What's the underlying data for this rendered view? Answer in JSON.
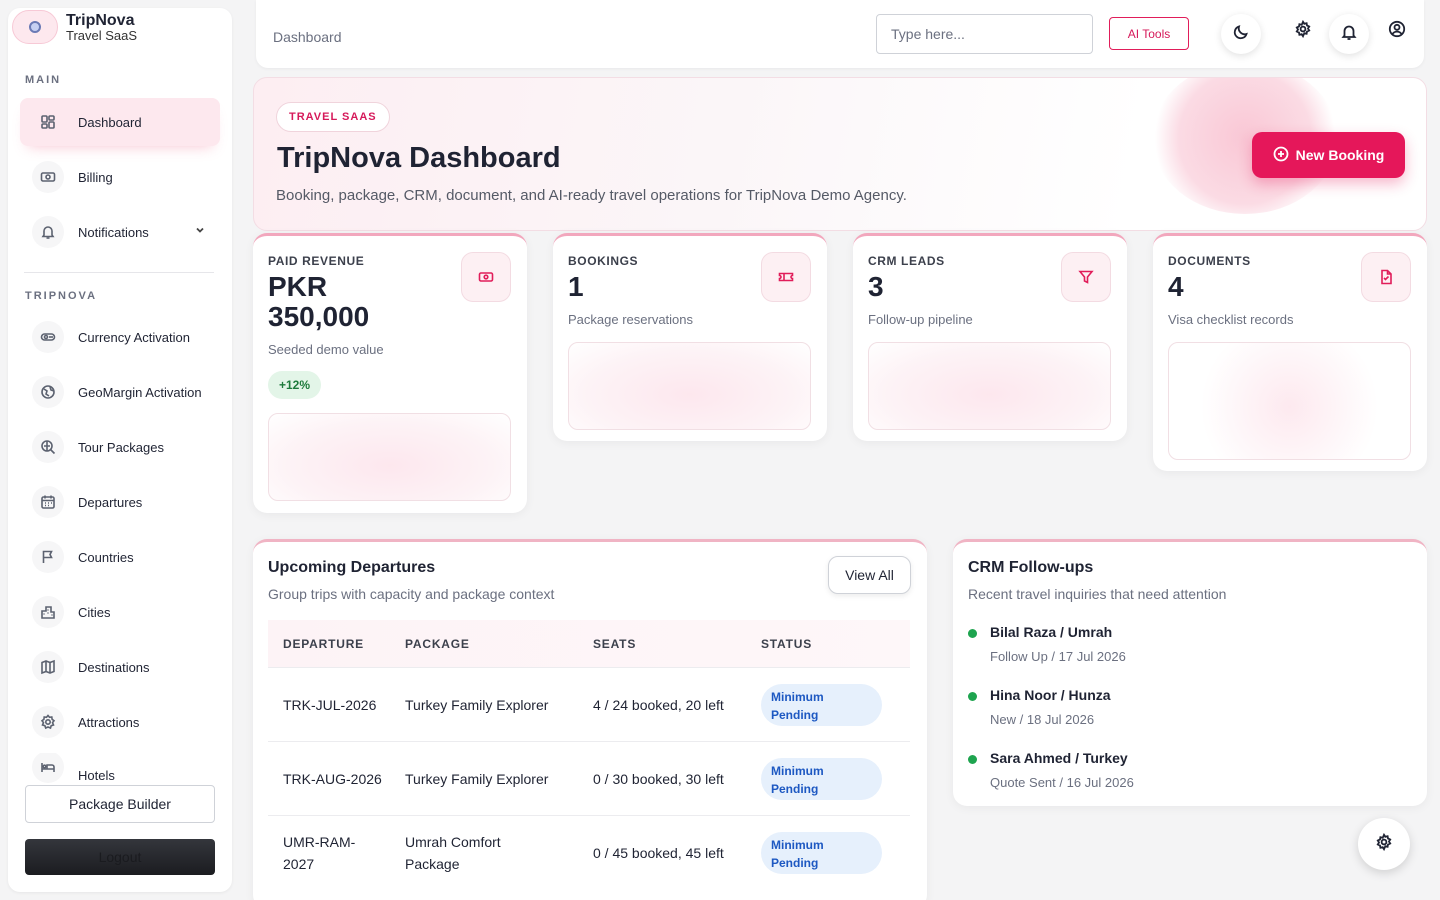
{
  "brand": {
    "name": "TripNova",
    "subtitle": "Travel SaaS"
  },
  "sidebar": {
    "section_main": "MAIN",
    "main_items": [
      {
        "label": "Dashboard",
        "icon": "grid-icon",
        "active": true
      },
      {
        "label": "Billing",
        "icon": "banknote-icon"
      },
      {
        "label": "Notifications",
        "icon": "bell-icon",
        "has_submenu": true
      }
    ],
    "section_tripnova": "TRIPNOVA",
    "tripnova_items": [
      {
        "label": "Currency Activation",
        "icon": "currency-icon"
      },
      {
        "label": "GeoMargin Activation",
        "icon": "globe-icon"
      },
      {
        "label": "Tour Packages",
        "icon": "search-globe-icon"
      },
      {
        "label": "Departures",
        "icon": "calendar-icon"
      },
      {
        "label": "Countries",
        "icon": "flag-icon"
      },
      {
        "label": "Cities",
        "icon": "buildings-icon"
      },
      {
        "label": "Destinations",
        "icon": "map-icon"
      },
      {
        "label": "Attractions",
        "icon": "gear-badge-icon"
      },
      {
        "label": "Hotels",
        "icon": "bed-icon"
      }
    ],
    "package_builder": "Package Builder",
    "logout": "Logout"
  },
  "header": {
    "breadcrumb": "Dashboard",
    "search_placeholder": "Type here...",
    "ai_tools": "AI Tools"
  },
  "hero": {
    "tag": "TRAVEL SAAS",
    "title": "TripNova Dashboard",
    "subtitle": "Booking, package, CRM, document, and AI-ready travel operations for TripNova Demo Agency.",
    "cta": "New Booking"
  },
  "stats": [
    {
      "label": "PAID REVENUE",
      "value_line1": "PKR",
      "value_line2": "350,000",
      "note": "Seeded demo value",
      "trend": "+12%",
      "icon": "cash-icon"
    },
    {
      "label": "BOOKINGS",
      "value": "1",
      "note": "Package reservations",
      "icon": "ticket-icon"
    },
    {
      "label": "CRM LEADS",
      "value": "3",
      "note": "Follow-up pipeline",
      "icon": "funnel-icon"
    },
    {
      "label": "DOCUMENTS",
      "value": "4",
      "note": "Visa checklist records",
      "icon": "document-check-icon"
    }
  ],
  "departures": {
    "title": "Upcoming Departures",
    "subtitle": "Group trips with capacity and package context",
    "view_all": "View All",
    "columns": [
      "DEPARTURE",
      "PACKAGE",
      "SEATS",
      "STATUS"
    ],
    "rows": [
      {
        "departure": "TRK-JUL-2026",
        "package": "Turkey Family Explorer",
        "seats": "4 / 24 booked, 20 left",
        "status": "Minimum Pending"
      },
      {
        "departure": "TRK-AUG-2026",
        "package": "Turkey Family Explorer",
        "seats": "0 / 30 booked, 30 left",
        "status": "Minimum Pending"
      },
      {
        "departure": "UMR-RAM-2027",
        "package": "Umrah Comfort Package",
        "seats": "0 / 45 booked, 45 left",
        "status": "Minimum Pending"
      }
    ]
  },
  "crm": {
    "title": "CRM Follow-ups",
    "subtitle": "Recent travel inquiries that need attention",
    "leads": [
      {
        "name": "Bilal Raza / Umrah",
        "meta": "Follow Up / 17 Jul 2026"
      },
      {
        "name": "Hina Noor / Hunza",
        "meta": "New / 18 Jul 2026"
      },
      {
        "name": "Sara Ahmed / Turkey",
        "meta": "Quote Sent / 16 Jul 2026"
      }
    ]
  },
  "colors": {
    "accent": "#e5175a",
    "active_bg": "#fde8ee",
    "success": "#1ea44f",
    "badge_bg": "#e6f0fc",
    "badge_text": "#1d58c2"
  }
}
